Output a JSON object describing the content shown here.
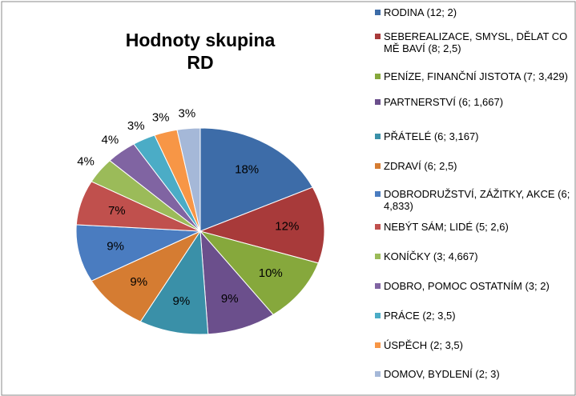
{
  "chart_data": {
    "type": "pie",
    "title": "Hodnoty skupina RD",
    "categories": [
      "RODINA (12; 2)",
      "SEBEREALIZACE, SMYSL, DĚLAT CO MĚ BAVÍ (8; 2,5)",
      "PENÍZE, FINANČNÍ JISTOTA (7; 3,429)",
      "PARTNERSTVÍ (6; 1,667)",
      "PŘÁTELÉ (6; 3,167)",
      "ZDRAVÍ (6; 2,5)",
      "DOBRODRUŽSTVÍ, ZÁŽITKY, AKCE (6; 4,833)",
      "NEBÝT SÁM; LIDÉ (5; 2,6)",
      "KONÍČKY (3; 4,667)",
      "DOBRO, POMOC OSTATNÍM (3; 2)",
      "PRÁCE (2; 3,5)",
      "ÚSPĚCH (2; 3,5)",
      "DOMOV, BYDLENÍ (2; 3)"
    ],
    "values": [
      18,
      12,
      10,
      9,
      9,
      9,
      9,
      7,
      4,
      4,
      3,
      3,
      3
    ],
    "value_labels": [
      "18%",
      "12%",
      "10%",
      "9%",
      "9%",
      "9%",
      "9%",
      "7%",
      "4%",
      "4%",
      "3%",
      "3%",
      "3%"
    ],
    "colors": [
      "#3d6ca8",
      "#a83a3a",
      "#86a83c",
      "#6b4f8c",
      "#3a90a8",
      "#d57c32",
      "#4a7cc0",
      "#c0504d",
      "#9bbb59",
      "#8064a2",
      "#4bacc6",
      "#f79646",
      "#a5b8d8"
    ]
  }
}
